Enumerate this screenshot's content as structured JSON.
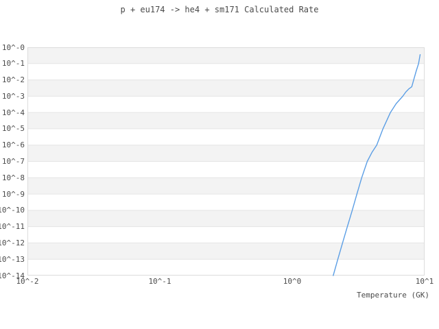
{
  "title": "p + eu174 -> he4 + sm171 Calculated Rate",
  "colors": {
    "background": "#ffffff",
    "text": "#4a4a4a",
    "plot_border": "#dcdcdc",
    "grid_band": "#f3f3f3",
    "grid_line": "#e4e4e4",
    "curve": "#5b9ee5"
  },
  "chart_data": {
    "type": "line",
    "title": "p + eu174 -> he4 + sm171 Calculated Rate",
    "xlabel": "Temperature (GK)",
    "ylabel": "",
    "x_scale": "log",
    "y_scale": "log",
    "xlim": [
      0.01,
      10
    ],
    "ylim": [
      1e-14,
      1
    ],
    "x_tick_labels": [
      "10^-2",
      "10^-1",
      "10^0",
      "10^1"
    ],
    "x_tick_log10": [
      -2,
      -1,
      0,
      1
    ],
    "y_tick_labels": [
      "10^-0",
      "10^-1",
      "10^-2",
      "10^-3",
      "10^-4",
      "10^-5",
      "10^-6",
      "10^-7",
      "10^-8",
      "10^-9",
      "10^-10",
      "10^-11",
      "10^-12",
      "10^-13",
      "10^-14"
    ],
    "y_tick_exponents": [
      0,
      -1,
      -2,
      -3,
      -4,
      -5,
      -6,
      -7,
      -8,
      -9,
      -10,
      -11,
      -12,
      -13,
      -14
    ],
    "grid": {
      "horizontal_bands": true,
      "legend": "none"
    },
    "series": [
      {
        "name": "calculated-rate",
        "color": "#5b9ee5",
        "points_T_GK": [
          2.04,
          2.21,
          2.4,
          2.61,
          2.84,
          3.08,
          3.35,
          3.69,
          4.0,
          4.35,
          4.85,
          5.52,
          6.1,
          6.84,
          7.2,
          7.6,
          8.0,
          8.27,
          8.65,
          9.0,
          9.25
        ],
        "points_log10_rate": [
          -14,
          -13,
          -12,
          -11,
          -10,
          -9,
          -8,
          -7,
          -6.45,
          -6,
          -5,
          -4,
          -3.45,
          -3,
          -2.75,
          -2.55,
          -2.42,
          -2.0,
          -1.45,
          -1.0,
          -0.45
        ]
      }
    ]
  }
}
